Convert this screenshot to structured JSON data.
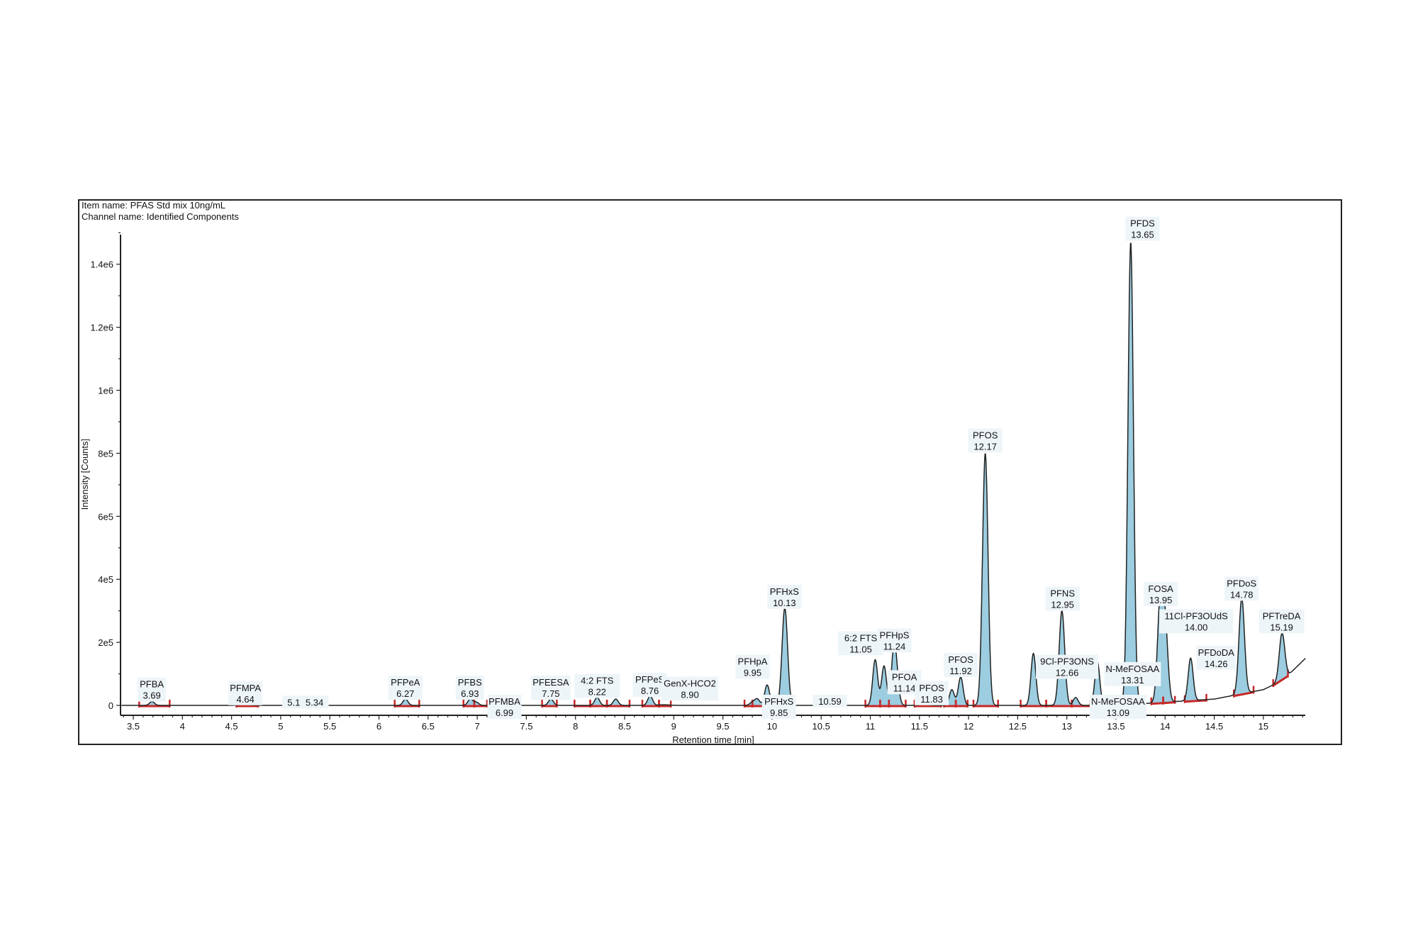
{
  "header": {
    "item_name": "Item name: PFAS Std mix 10ng/mL",
    "channel_name": "Channel name: Identified Components"
  },
  "chart_data": {
    "type": "line",
    "title": "",
    "xlabel": "Retention time [min]",
    "ylabel": "Intensity [Counts]",
    "xlim": [
      3.38,
      15.43
    ],
    "ylim": [
      0,
      1500000
    ],
    "x_ticks": [
      "3.5",
      "4",
      "4.5",
      "5",
      "5.5",
      "6",
      "6.5",
      "7",
      "7.5",
      "8",
      "8.5",
      "9",
      "9.5",
      "10",
      "10.5",
      "11",
      "11.5",
      "12",
      "12.5",
      "13",
      "13.5",
      "14",
      "14.5",
      "15"
    ],
    "y_ticks": [
      "0",
      "2e5",
      "4e5",
      "6e5",
      "8e5",
      "1e6",
      "1.2e6",
      "1.4e6"
    ],
    "grid": false,
    "colors": {
      "trace": "#222222",
      "peak_fill": "#9ccde0",
      "integration": "#c62828"
    },
    "peaks": [
      {
        "name": "PFBA",
        "rt": "3.69",
        "intensity": 12000
      },
      {
        "name": "PFMPA",
        "rt": "4.64",
        "intensity": 3000
      },
      {
        "name": "",
        "rt": "5.16",
        "intensity": 1000
      },
      {
        "name": "",
        "rt": "5.34",
        "intensity": 1500
      },
      {
        "name": "PFPeA",
        "rt": "6.27",
        "intensity": 20000
      },
      {
        "name": "PFBS",
        "rt": "6.93",
        "intensity": 20000
      },
      {
        "name": "PFMBA",
        "rt": "6.99",
        "intensity": 10000
      },
      {
        "name": "PFEESA",
        "rt": "7.75",
        "intensity": 20000
      },
      {
        "name": "4:2 FTS",
        "rt": "8.22",
        "intensity": 25000
      },
      {
        "name": "PFPeS",
        "rt": "8.76",
        "intensity": 30000
      },
      {
        "name": "GenX-HCO2",
        "rt": "8.90",
        "intensity": 2000
      },
      {
        "name": "PFHxS",
        "rt": "9.85",
        "intensity": 20000
      },
      {
        "name": "PFHpA",
        "rt": "9.95",
        "intensity": 65000
      },
      {
        "name": "PFHxS",
        "rt": "10.13",
        "intensity": 310000
      },
      {
        "name": "",
        "rt": "10.59",
        "intensity": 1000
      },
      {
        "name": "6:2 FTS",
        "rt": "11.05",
        "intensity": 145000
      },
      {
        "name": "PFOA",
        "rt": "11.14",
        "intensity": 125000
      },
      {
        "name": "PFHpS",
        "rt": "11.24",
        "intensity": 170000
      },
      {
        "name": "PFOS",
        "rt": "11.83",
        "intensity": 50000
      },
      {
        "name": "PFOS",
        "rt": "11.92",
        "intensity": 90000
      },
      {
        "name": "PFOS",
        "rt": "12.17",
        "intensity": 800000
      },
      {
        "name": "9Cl-PF3ONS",
        "rt": "12.66",
        "intensity": 165000
      },
      {
        "name": "PFNS",
        "rt": "12.95",
        "intensity": 300000
      },
      {
        "name": "N-MeFOSAA",
        "rt": "13.09",
        "intensity": 25000
      },
      {
        "name": "N-MeFOSAA",
        "rt": "13.31",
        "intensity": 140000
      },
      {
        "name": "PFDS",
        "rt": "13.65",
        "intensity": 1470000
      },
      {
        "name": "FOSA",
        "rt": "13.95",
        "intensity": 320000
      },
      {
        "name": "11Cl-PF3OUdS",
        "rt": "14.00",
        "intensity": 250000
      },
      {
        "name": "PFDoDA",
        "rt": "14.26",
        "intensity": 150000
      },
      {
        "name": "PFDoS",
        "rt": "14.78",
        "intensity": 340000
      },
      {
        "name": "PFTreDA",
        "rt": "15.19",
        "intensity": 230000
      }
    ],
    "unlabeled_peaks": [
      {
        "rt": 8.41,
        "intensity": 20000
      },
      {
        "rt": 9.8,
        "intensity": 10000
      },
      {
        "rt": 11.27,
        "intensity": 60000
      },
      {
        "rt": 11.55,
        "intensity": 3000
      }
    ],
    "integration_windows": [
      [
        3.56,
        3.87
      ],
      [
        4.55,
        4.77
      ],
      [
        5.11,
        5.19
      ],
      [
        5.3,
        5.45
      ],
      [
        6.16,
        6.41
      ],
      [
        6.86,
        6.97
      ],
      [
        6.97,
        7.1
      ],
      [
        7.66,
        7.81
      ],
      [
        7.99,
        8.15
      ],
      [
        8.15,
        8.32
      ],
      [
        8.32,
        8.55
      ],
      [
        8.68,
        8.85
      ],
      [
        8.85,
        8.97
      ],
      [
        9.72,
        9.8
      ],
      [
        9.8,
        9.93
      ],
      [
        10.95,
        11.1
      ],
      [
        11.1,
        11.19
      ],
      [
        11.19,
        11.36
      ],
      [
        11.45,
        11.72
      ],
      [
        11.75,
        11.87
      ],
      [
        11.87,
        11.99
      ],
      [
        12.05,
        12.3
      ],
      [
        12.53,
        12.79
      ],
      [
        12.79,
        13.05
      ],
      [
        13.05,
        13.24
      ],
      [
        13.86,
        13.98
      ],
      [
        13.98,
        14.1
      ],
      [
        14.2,
        14.42
      ],
      [
        14.7,
        14.9
      ],
      [
        15.1,
        15.25
      ]
    ]
  }
}
